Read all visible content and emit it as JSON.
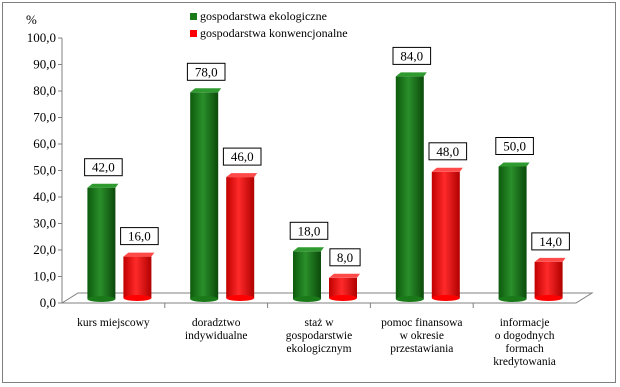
{
  "chart_data": {
    "type": "bar",
    "ylabel": "%",
    "ylim": [
      0,
      100
    ],
    "yticks": [
      "0,0",
      "10,0",
      "20,0",
      "30,0",
      "40,0",
      "50,0",
      "60,0",
      "70,0",
      "80,0",
      "90,0",
      "100,0"
    ],
    "categories": [
      [
        "kurs miejscowy"
      ],
      [
        "doradztwo",
        "indywidualne"
      ],
      [
        "staż w",
        "gospodarstwie",
        "ekologicznym"
      ],
      [
        "pomoc finansowa",
        "w okresie",
        "przestawiania"
      ],
      [
        "informacje",
        "o dogodnych",
        "formach",
        "kredytowania"
      ]
    ],
    "series": [
      {
        "name": "gospodarstwa ekologiczne",
        "color": "#1a7a1a",
        "values": [
          42.0,
          78.0,
          18.0,
          84.0,
          50.0
        ],
        "labels": [
          "42,0",
          "78,0",
          "18,0",
          "84,0",
          "50,0"
        ]
      },
      {
        "name": "gospodarstwa konwencjonalne",
        "color": "#ff0000",
        "values": [
          16.0,
          46.0,
          8.0,
          48.0,
          14.0
        ],
        "labels": [
          "16,0",
          "46,0",
          "8,0",
          "48,0",
          "14,0"
        ]
      }
    ],
    "legend": "top-center",
    "grid": false
  }
}
